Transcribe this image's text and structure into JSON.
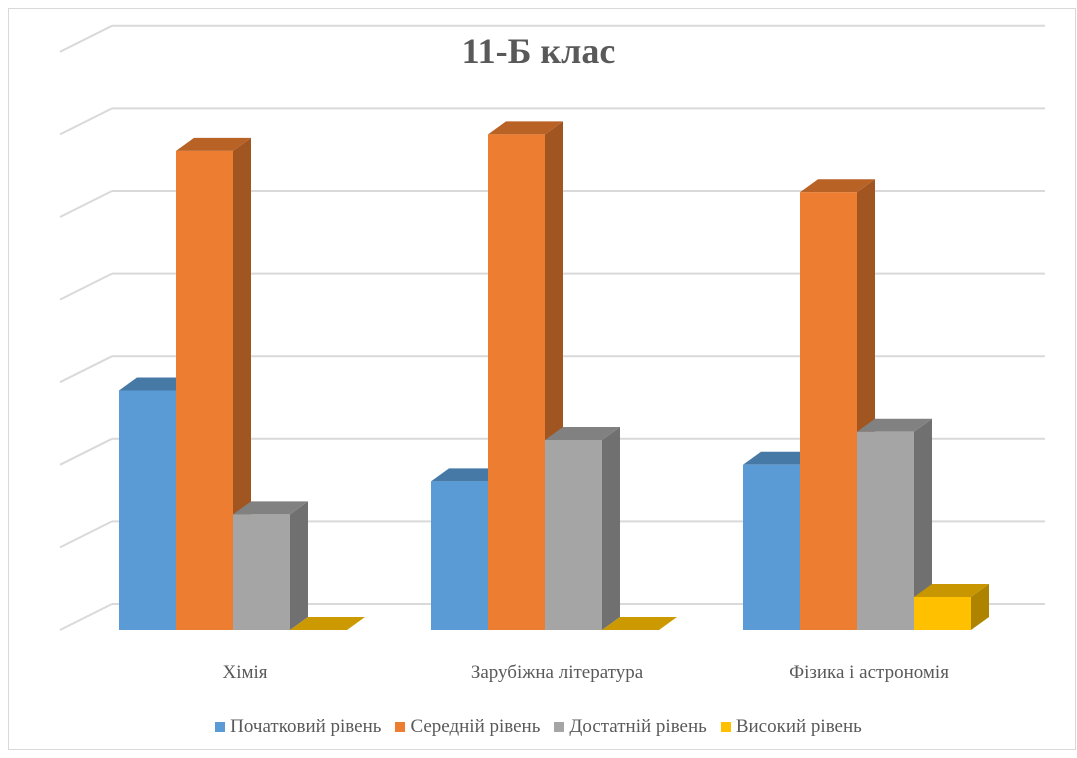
{
  "chart_data": {
    "type": "bar",
    "subtype": "3d-clustered-column",
    "title": "11-Б клас",
    "categories": [
      "Хімія",
      "Зарубіжна література",
      "Фізика і астрономія"
    ],
    "series": [
      {
        "name": "Початковий рівень",
        "color": "#5b9bd5",
        "values": [
          2.9,
          1.8,
          2.0
        ]
      },
      {
        "name": "Середній рівень",
        "color": "#ed7d31",
        "values": [
          5.8,
          6.0,
          5.3
        ]
      },
      {
        "name": "Достатній рівень",
        "color": "#a5a5a5",
        "values": [
          1.4,
          2.3,
          2.4
        ]
      },
      {
        "name": "Високий рівень",
        "color": "#ffc000",
        "values": [
          0,
          0,
          0.4
        ]
      }
    ],
    "ylim": [
      0,
      7
    ],
    "grid": true,
    "axis_labels_shown": false,
    "legend": "bottom"
  }
}
